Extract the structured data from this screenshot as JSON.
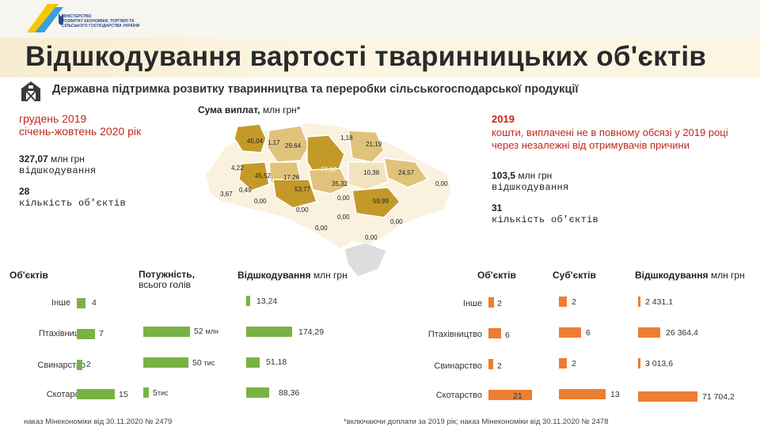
{
  "ministry": {
    "name_lines": [
      "Міністерство",
      "розвитку економіки, торгівлі та",
      "сільського господарства України"
    ],
    "colors": [
      "#f7c600",
      "#3aa0dc",
      "#2b4a8a"
    ]
  },
  "title": "Відшкодування вартості тваринницьких об'єктів",
  "subtitle": "Державна підтримка розвитку тваринництва та переробки сільськогосподарської продукції",
  "left_summary": {
    "period_line1": "грудень 2019",
    "period_line2": "січень-жовтень 2020 рік",
    "amount_value": "327,07",
    "amount_unit": "млн грн",
    "amount_label": "відшкодування",
    "count_value": "28",
    "count_label": "кількість об'єктів"
  },
  "right_summary": {
    "year": "2019",
    "note": "кошти, виплачені не в повному обсязі у 2019 році через незалежні від отримувачів причини",
    "amount_value": "103,5",
    "amount_unit": "млн грн",
    "amount_label": "відшкодування",
    "count_value": "31",
    "count_label": "кількість об'єктів"
  },
  "map": {
    "title_bold": "Сума виплат,",
    "title_light": "млн грн*",
    "region_values": [
      "45,04",
      "1,17",
      "29,64",
      "1,18",
      "21,19",
      "4,22",
      "45,52",
      "17,26",
      "77,16",
      "10,38",
      "24,57",
      "3,67",
      "0,49",
      "53,77",
      "35,32",
      "0,00",
      "0,00",
      "59,99",
      "0,00",
      "0,00",
      "0,00",
      "0,00",
      "0,00",
      "0,00"
    ],
    "colors": {
      "high": "#c39a2a",
      "mid": "#e0c27a",
      "low": "#f2e2bd",
      "zero": "#faf1df",
      "crimea": "#dddddd"
    }
  },
  "left_table": {
    "headers": {
      "objects": "Об'єктів",
      "capacity_line1": "Потужність,",
      "capacity_line2": "всього голів",
      "compensation": "Відшкодування",
      "compensation_unit": "млн грн"
    },
    "rows": [
      {
        "category": "Інше",
        "objects": 4,
        "capacity_value": "",
        "capacity_unit": "",
        "compensation": "13,24"
      },
      {
        "category": "Птахівництво",
        "objects": 7,
        "capacity_value": "52",
        "capacity_unit": "млн",
        "compensation": "174,29"
      },
      {
        "category": "Свинарство",
        "objects": 2,
        "capacity_value": "50",
        "capacity_unit": "тис",
        "compensation": "51,18"
      },
      {
        "category": "Скотарство",
        "objects": 15,
        "capacity_value": "5",
        "capacity_unit": "тис",
        "compensation": "88,36"
      }
    ],
    "bar_color": "#79b244"
  },
  "right_table": {
    "headers": {
      "objects": "Об'єктів",
      "subjects": "Суб'єктів",
      "compensation": "Відшкодування",
      "compensation_unit": "млн грн"
    },
    "rows": [
      {
        "category": "Інше",
        "objects": 2,
        "subjects": 2,
        "compensation": "2 431,1"
      },
      {
        "category": "Птахівництво",
        "objects": 6,
        "subjects": 6,
        "compensation": "26 364,4"
      },
      {
        "category": "Свинарство",
        "objects": 2,
        "subjects": 2,
        "compensation": "3 013,6"
      },
      {
        "category": "Скотарство",
        "objects": 21,
        "subjects": 13,
        "compensation": "71 704,2"
      }
    ],
    "bar_color": "#ed7d31"
  },
  "footnotes": {
    "left": "наказ Мінекономіки від 30.11.2020 № 2479",
    "right": "*включаючи доплати за 2019 рік; наказ Мінекономіки від 30.11.2020 № 2478"
  }
}
